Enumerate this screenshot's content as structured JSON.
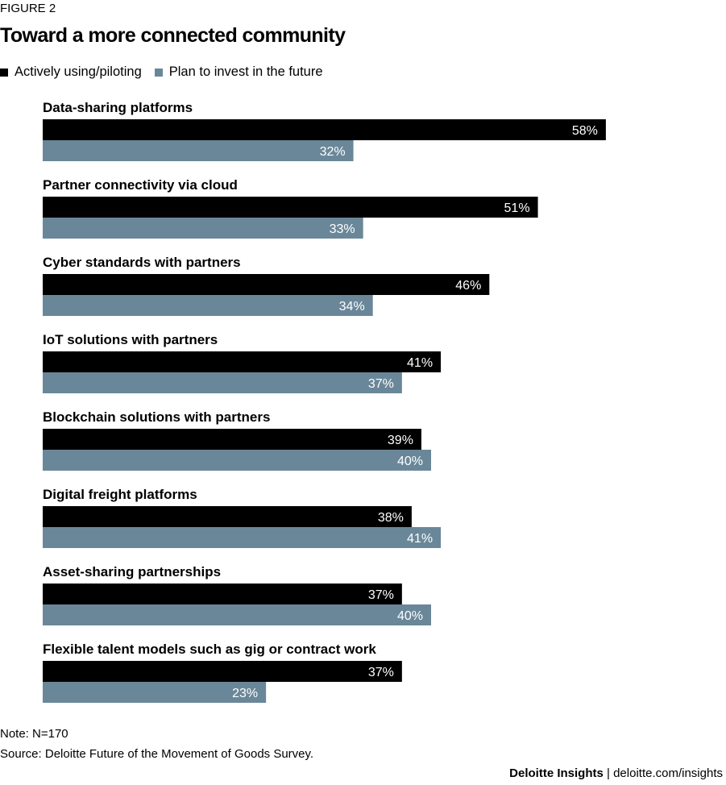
{
  "figure_label": "FIGURE 2",
  "colors": {
    "active": "#000000",
    "plan": "#6a8799"
  },
  "chart_data": {
    "type": "bar",
    "orientation": "horizontal",
    "title": "Toward a more connected community",
    "xlim": [
      0,
      100
    ],
    "legend_position": "top-left",
    "grid": false,
    "categories": [
      "Data-sharing platforms",
      "Partner connectivity via cloud",
      "Cyber standards with partners",
      "IoT solutions with partners",
      "Blockchain solutions with partners",
      "Digital freight platforms",
      "Asset-sharing partnerships",
      "Flexible talent models such as gig or contract work"
    ],
    "series": [
      {
        "name": "Actively using/piloting",
        "values": [
          58,
          51,
          46,
          41,
          39,
          38,
          37,
          37
        ]
      },
      {
        "name": "Plan to invest in the future",
        "values": [
          32,
          33,
          34,
          37,
          40,
          41,
          40,
          23
        ]
      }
    ],
    "value_labels": [
      [
        "58%",
        "51%",
        "46%",
        "41%",
        "39%",
        "38%",
        "37%",
        "37%"
      ],
      [
        "32%",
        "33%",
        "34%",
        "37%",
        "40%",
        "41%",
        "40%",
        "23%"
      ]
    ]
  },
  "note": "Note: N=170",
  "source": "Source: Deloitte Future of the Movement of Goods Survey.",
  "footer": {
    "brand": "Deloitte Insights",
    "separator": " | ",
    "url": "deloitte.com/insights"
  }
}
